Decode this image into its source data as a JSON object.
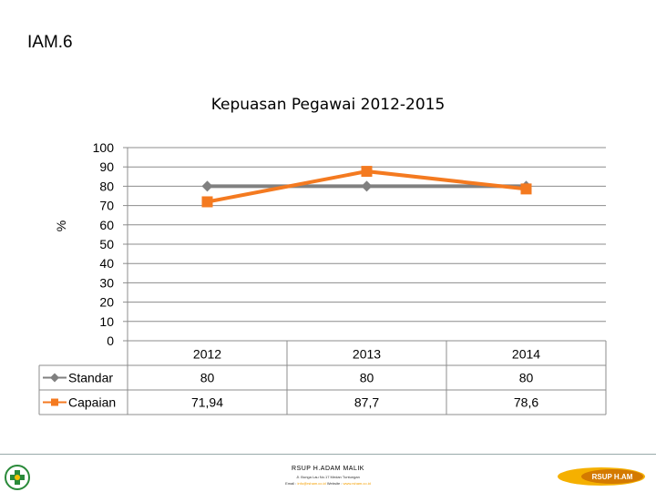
{
  "slide": {
    "title": "IAM.6"
  },
  "chart_data": {
    "type": "line",
    "title": "Kepuasan Pegawai 2012-2015",
    "xlabel": "",
    "ylabel": "%",
    "ylim": [
      0,
      100
    ],
    "yticks": [
      "100",
      "90",
      "80",
      "70",
      "60",
      "50",
      "40",
      "30",
      "20",
      "10",
      "0"
    ],
    "categories": [
      "2012",
      "2013",
      "2014"
    ],
    "series": [
      {
        "name": "Standar",
        "values": [
          80,
          80,
          80
        ],
        "display": [
          "80",
          "80",
          "80"
        ],
        "color": "#808080",
        "marker": "diamond"
      },
      {
        "name": "Capaian",
        "values": [
          71.94,
          87.7,
          78.6
        ],
        "display": [
          "71,94",
          "87,7",
          "78,6"
        ],
        "color": "#f47a20",
        "marker": "square"
      }
    ],
    "grid": true,
    "data_table": true
  },
  "footer": {
    "name": "RSUP H.ADAM MALIK",
    "address": "Jl. Bunga Lau No.17 Medan Tuntungan",
    "contact_prefix": "Email :",
    "email": "info@rsham.co.id",
    "website_prefix": "Website :",
    "website": "www.rsham.co.id",
    "logo_right_text": "RSUP H.AM"
  }
}
